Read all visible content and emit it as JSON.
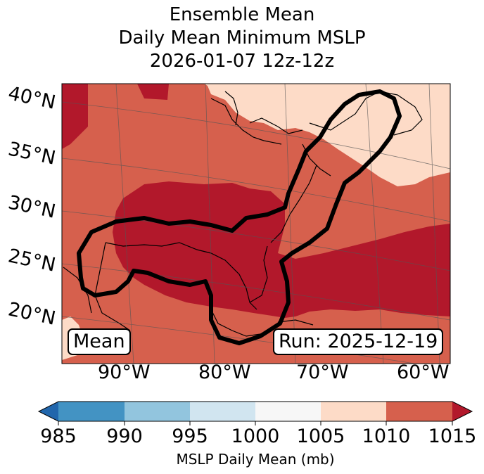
{
  "title": {
    "line1": "Ensemble Mean",
    "line2": "Daily Mean Minimum MSLP",
    "line3": "2026-01-07 12z-12z"
  },
  "map": {
    "lat_labels": [
      "40°N",
      "35°N",
      "30°N",
      "25°N",
      "20°N"
    ],
    "lon_labels": [
      "90°W",
      "80°W",
      "70°W",
      "60°W"
    ],
    "region_colors": {
      "bin_1005_1010": "#fddbc7",
      "bin_1010_1015": "#d6604d",
      "bin_1015_plus": "#b2182b"
    },
    "contour_color": "#000000",
    "annotations": {
      "left_box": "Mean",
      "right_box": "Run: 2025-12-19"
    }
  },
  "colorbar": {
    "ticks": [
      "985",
      "990",
      "995",
      "1000",
      "1005",
      "1010",
      "1015"
    ],
    "colors": [
      "#2166ac",
      "#4393c3",
      "#92c5de",
      "#d1e5f0",
      "#f7f7f7",
      "#fddbc7",
      "#d6604d",
      "#b2182b"
    ],
    "label": "MSLP Daily Mean (mb)"
  }
}
